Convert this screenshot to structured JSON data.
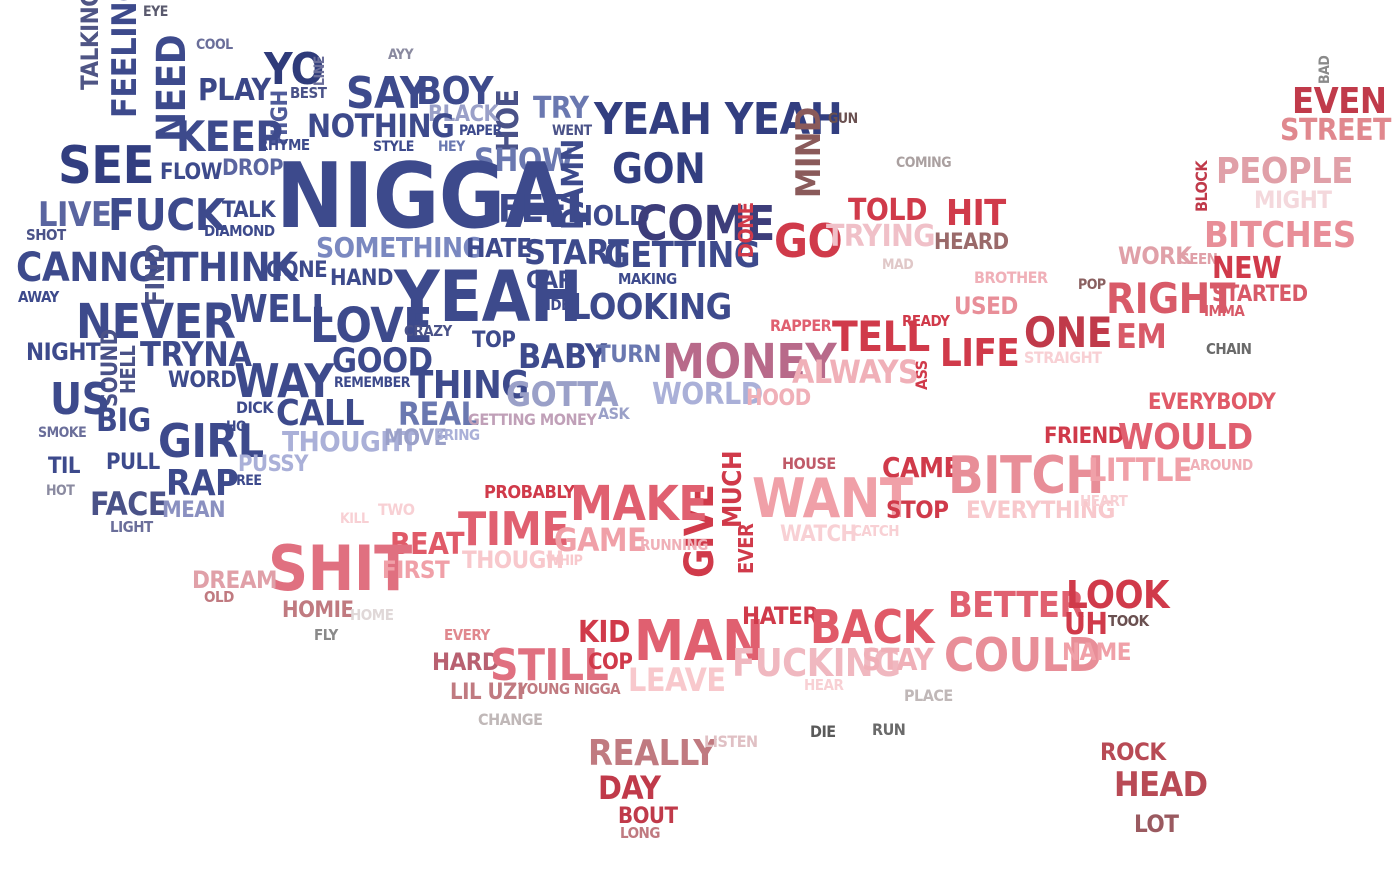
{
  "words": [
    {
      "text": "EYE",
      "color": "#5a5a6e"
    },
    {
      "text": "COOL",
      "color": "#6a6e9a"
    },
    {
      "text": "TALKING",
      "color": "#4f5585"
    },
    {
      "text": "FEELING",
      "color": "#3d4a8c"
    },
    {
      "text": "NEED",
      "color": "#3d4a8c"
    },
    {
      "text": "PLAY",
      "color": "#3b4788"
    },
    {
      "text": "YO",
      "color": "#2f3b7a"
    },
    {
      "text": "LINE",
      "color": "#6a6e9a"
    },
    {
      "text": "HIGH",
      "color": "#4f5b9a"
    },
    {
      "text": "BEST",
      "color": "#4a5288"
    },
    {
      "text": "AYY",
      "color": "#8a8aa0"
    },
    {
      "text": "SAY",
      "color": "#3d4a8c"
    },
    {
      "text": "BOY",
      "color": "#3d4a8c"
    },
    {
      "text": "HOE",
      "color": "#4a5288"
    },
    {
      "text": "BLACK",
      "color": "#9aa0c8"
    },
    {
      "text": "PAPER",
      "color": "#3d4a8c"
    },
    {
      "text": "TRY",
      "color": "#6a78b0"
    },
    {
      "text": "WENT",
      "color": "#4a5288"
    },
    {
      "text": "YEAH YEAH",
      "color": "#323e80"
    },
    {
      "text": "KEEP",
      "color": "#3d4a8c"
    },
    {
      "text": "RHYME",
      "color": "#3d4a8c"
    },
    {
      "text": "NOTHING",
      "color": "#3d4a8c"
    },
    {
      "text": "STYLE",
      "color": "#3d4a8c"
    },
    {
      "text": "HEY",
      "color": "#6a78b0"
    },
    {
      "text": "SHOW",
      "color": "#6a78b0"
    },
    {
      "text": "DAMN",
      "color": "#3d4a8c"
    },
    {
      "text": "GON",
      "color": "#323e80"
    },
    {
      "text": "SEE",
      "color": "#323e80"
    },
    {
      "text": "FLOW",
      "color": "#3d4a8c"
    },
    {
      "text": "DROP",
      "color": "#5a65a0"
    },
    {
      "text": "NIGGA",
      "color": "#3d4a8c"
    },
    {
      "text": "FEEL",
      "color": "#3d4a8c"
    },
    {
      "text": "HOLD",
      "color": "#3d4a8c"
    },
    {
      "text": "LIVE",
      "color": "#5a65a0"
    },
    {
      "text": "SHOT",
      "color": "#4a5288"
    },
    {
      "text": "FUCK",
      "color": "#3d4a8c"
    },
    {
      "text": "TALK",
      "color": "#3d4a8c"
    },
    {
      "text": "DIAMOND",
      "color": "#3d4a8c"
    },
    {
      "text": "COME",
      "color": "#3d3d7a"
    },
    {
      "text": "SOMETHING",
      "color": "#7a88c0"
    },
    {
      "text": "HATE",
      "color": "#3d4a8c"
    },
    {
      "text": "START",
      "color": "#3d4a8c"
    },
    {
      "text": "GETTING",
      "color": "#3d4a8c"
    },
    {
      "text": "CANNOT",
      "color": "#3d4a8c"
    },
    {
      "text": "FIND",
      "color": "#4a5288"
    },
    {
      "text": "THINK",
      "color": "#3d4a8c"
    },
    {
      "text": "GONE",
      "color": "#3d4a8c"
    },
    {
      "text": "CAR",
      "color": "#3d4a8c"
    },
    {
      "text": "MAKING",
      "color": "#3d4a8c"
    },
    {
      "text": "HAND",
      "color": "#3d4a8c"
    },
    {
      "text": "YEAH",
      "color": "#3d4a8c"
    },
    {
      "text": "AWAY",
      "color": "#3d4a8c"
    },
    {
      "text": "RIDE",
      "color": "#3d4a8c"
    },
    {
      "text": "LOOKING",
      "color": "#3d4a8c"
    },
    {
      "text": "NEVER",
      "color": "#3d4a8c"
    },
    {
      "text": "WELL",
      "color": "#3d4a8c"
    },
    {
      "text": "LOVE",
      "color": "#3d4a8c"
    },
    {
      "text": "CRAZY",
      "color": "#4a5288"
    },
    {
      "text": "TOP",
      "color": "#3d4a8c"
    },
    {
      "text": "NIGHT",
      "color": "#3d4a8c"
    },
    {
      "text": "SOUND",
      "color": "#4a5288"
    },
    {
      "text": "HELL",
      "color": "#4a5288"
    },
    {
      "text": "TRYNA",
      "color": "#3d4a8c"
    },
    {
      "text": "GOOD",
      "color": "#3d4a8c"
    },
    {
      "text": "BABY",
      "color": "#3d4a8c"
    },
    {
      "text": "TURN",
      "color": "#6a78b0"
    },
    {
      "text": "MONEY",
      "color": "#b86a8a"
    },
    {
      "text": "WORD",
      "color": "#3d4a8c"
    },
    {
      "text": "WAY",
      "color": "#3d4a8c"
    },
    {
      "text": "REMEMBER",
      "color": "#3d4a8c"
    },
    {
      "text": "THING",
      "color": "#3d4a8c"
    },
    {
      "text": "US",
      "color": "#3d4a8c"
    },
    {
      "text": "DICK",
      "color": "#3d4a8c"
    },
    {
      "text": "GOTTA",
      "color": "#9aa0c8"
    },
    {
      "text": "WORLD",
      "color": "#aab0d8"
    },
    {
      "text": "BIG",
      "color": "#3d4a8c"
    },
    {
      "text": "CALL",
      "color": "#3d4a8c"
    },
    {
      "text": "REAL",
      "color": "#6a78b0"
    },
    {
      "text": "ASK",
      "color": "#9aa0c8"
    },
    {
      "text": "GETTING MONEY",
      "color": "#c0a0b8"
    },
    {
      "text": "SMOKE",
      "color": "#6a6e9a"
    },
    {
      "text": "GIRL",
      "color": "#3d4a8c"
    },
    {
      "text": "HO",
      "color": "#3d4a8c"
    },
    {
      "text": "THOUGHT",
      "color": "#aab0d8"
    },
    {
      "text": "MOVE",
      "color": "#9aa0c8"
    },
    {
      "text": "BRING",
      "color": "#aab0d8"
    },
    {
      "text": "TIL",
      "color": "#3d4a8c"
    },
    {
      "text": "PULL",
      "color": "#3d4a8c"
    },
    {
      "text": "PUSSY",
      "color": "#aab0d8"
    },
    {
      "text": "HOT",
      "color": "#8a8aa0"
    },
    {
      "text": "RAP",
      "color": "#3d4a8c"
    },
    {
      "text": "FREE",
      "color": "#3d4a8c"
    },
    {
      "text": "FACE",
      "color": "#4a5288"
    },
    {
      "text": "MEAN",
      "color": "#8a90c0"
    },
    {
      "text": "LIGHT",
      "color": "#6a6e9a"
    },
    {
      "text": "BAD",
      "color": "#8a8a8a"
    },
    {
      "text": "EVEN",
      "color": "#c03a4a"
    },
    {
      "text": "STREET",
      "color": "#e0888e"
    },
    {
      "text": "GUN",
      "color": "#6a5050"
    },
    {
      "text": "MIND",
      "color": "#8a5a5a"
    },
    {
      "text": "COMING",
      "color": "#aaa0a0"
    },
    {
      "text": "PEOPLE",
      "color": "#e0a0a8"
    },
    {
      "text": "MIGHT",
      "color": "#f4d8dc"
    },
    {
      "text": "BLOCK",
      "color": "#c03a4a"
    },
    {
      "text": "TOLD",
      "color": "#d03a4a"
    },
    {
      "text": "HIT",
      "color": "#d03a4a"
    },
    {
      "text": "DONE",
      "color": "#d03a4a"
    },
    {
      "text": "GO",
      "color": "#d03a4a"
    },
    {
      "text": "TRYING",
      "color": "#f0c0c8"
    },
    {
      "text": "HEARD",
      "color": "#9a6a6a"
    },
    {
      "text": "BITCHES",
      "color": "#e88e98"
    },
    {
      "text": "MAD",
      "color": "#e0c8c8"
    },
    {
      "text": "WORK",
      "color": "#e0a0a8"
    },
    {
      "text": "SEEN",
      "color": "#e0a0a8"
    },
    {
      "text": "NEW",
      "color": "#d03a4a"
    },
    {
      "text": "BROTHER",
      "color": "#f0b0b8"
    },
    {
      "text": "POP",
      "color": "#8a6060"
    },
    {
      "text": "STARTED",
      "color": "#d85a68"
    },
    {
      "text": "RIGHT",
      "color": "#d85a68"
    },
    {
      "text": "USED",
      "color": "#e88e98"
    },
    {
      "text": "IMMA",
      "color": "#d85a68"
    },
    {
      "text": "RAPPER",
      "color": "#e06070"
    },
    {
      "text": "READY",
      "color": "#d03a4a"
    },
    {
      "text": "TELL",
      "color": "#d03a4a"
    },
    {
      "text": "ONE",
      "color": "#c03a4a"
    },
    {
      "text": "EM",
      "color": "#d85a68"
    },
    {
      "text": "ASS",
      "color": "#d03a4a"
    },
    {
      "text": "LIFE",
      "color": "#d03a4a"
    },
    {
      "text": "CHAIN",
      "color": "#6a6a6a"
    },
    {
      "text": "STRAIGHT",
      "color": "#f8d0d4"
    },
    {
      "text": "ALWAYS",
      "color": "#f0b0b8"
    },
    {
      "text": "HOOD",
      "color": "#f0b0b8"
    },
    {
      "text": "EVERYBODY",
      "color": "#e05a68"
    },
    {
      "text": "FRIEND",
      "color": "#d03a4a"
    },
    {
      "text": "WOULD",
      "color": "#e06070"
    },
    {
      "text": "HOUSE",
      "color": "#c05a68"
    },
    {
      "text": "CAME",
      "color": "#d03a4a"
    },
    {
      "text": "BITCH",
      "color": "#e88e98"
    },
    {
      "text": "LITTLE",
      "color": "#f0a0a8"
    },
    {
      "text": "AROUND",
      "color": "#f0b0b8"
    },
    {
      "text": "PROBABLY",
      "color": "#d03a4a"
    },
    {
      "text": "MUCH",
      "color": "#d03a4a"
    },
    {
      "text": "GIVE",
      "color": "#d03a4a"
    },
    {
      "text": "MAKE",
      "color": "#e06070"
    },
    {
      "text": "WANT",
      "color": "#f0a0a8"
    },
    {
      "text": "STOP",
      "color": "#d03a4a"
    },
    {
      "text": "EVERYTHING",
      "color": "#f8c8cc"
    },
    {
      "text": "HEART",
      "color": "#f8d0d4"
    },
    {
      "text": "TWO",
      "color": "#f8d0d4"
    },
    {
      "text": "KILL",
      "color": "#f8d0d4"
    },
    {
      "text": "TIME",
      "color": "#e06070"
    },
    {
      "text": "GAME",
      "color": "#f0a0a8"
    },
    {
      "text": "RUNNING",
      "color": "#f0b0b8"
    },
    {
      "text": "WATCH",
      "color": "#f8d0d4"
    },
    {
      "text": "CATCH",
      "color": "#f8d0d4"
    },
    {
      "text": "EVER",
      "color": "#d03a4a"
    },
    {
      "text": "BEAT",
      "color": "#e05a68"
    },
    {
      "text": "SHIT",
      "color": "#e07080"
    },
    {
      "text": "FIRST",
      "color": "#f0a0a8"
    },
    {
      "text": "THOUGH",
      "color": "#f8c8cc"
    },
    {
      "text": "WHIP",
      "color": "#f8c8cc"
    },
    {
      "text": "DREAM",
      "color": "#e0a0a8"
    },
    {
      "text": "OLD",
      "color": "#c07a80"
    },
    {
      "text": "HOMIE",
      "color": "#c07a80"
    },
    {
      "text": "HOME",
      "color": "#e0d8d8"
    },
    {
      "text": "FLY",
      "color": "#8a8a8a"
    },
    {
      "text": "EVERY",
      "color": "#e0888e"
    },
    {
      "text": "KID",
      "color": "#d03a4a"
    },
    {
      "text": "MAN",
      "color": "#e06070"
    },
    {
      "text": "HATER",
      "color": "#d03a4a"
    },
    {
      "text": "BACK",
      "color": "#e05a68"
    },
    {
      "text": "BETTER",
      "color": "#e06070"
    },
    {
      "text": "LOOK",
      "color": "#d03a4a"
    },
    {
      "text": "UH",
      "color": "#d03a4a"
    },
    {
      "text": "TOOK",
      "color": "#6a5050"
    },
    {
      "text": "HARD",
      "color": "#b86070"
    },
    {
      "text": "STILL",
      "color": "#e07080"
    },
    {
      "text": "COP",
      "color": "#d03a4a"
    },
    {
      "text": "FUCKING",
      "color": "#f0b8c0"
    },
    {
      "text": "STAY",
      "color": "#f0b0b8"
    },
    {
      "text": "COULD",
      "color": "#e88e98"
    },
    {
      "text": "NAME",
      "color": "#f0a0a8"
    },
    {
      "text": "LIL UZI",
      "color": "#c07a80"
    },
    {
      "text": "YOUNG NIGGA",
      "color": "#c07a80"
    },
    {
      "text": "LEAVE",
      "color": "#f8c8cc"
    },
    {
      "text": "HEAR",
      "color": "#f8d0d4"
    },
    {
      "text": "PLACE",
      "color": "#c0b8b8"
    },
    {
      "text": "CHANGE",
      "color": "#c0b8b8"
    },
    {
      "text": "DIE",
      "color": "#5a5a5a"
    },
    {
      "text": "RUN",
      "color": "#6a6a6a"
    },
    {
      "text": "REALLY",
      "color": "#c07a80"
    },
    {
      "text": "LISTEN",
      "color": "#e0c0c4"
    },
    {
      "text": "DAY",
      "color": "#c03a4a"
    },
    {
      "text": "BOUT",
      "color": "#c03a4a"
    },
    {
      "text": "LONG",
      "color": "#c07a80"
    },
    {
      "text": "ROCK",
      "color": "#b84a55"
    },
    {
      "text": "HEAD",
      "color": "#b84a55"
    },
    {
      "text": "LOT",
      "color": "#9a5a60"
    }
  ]
}
